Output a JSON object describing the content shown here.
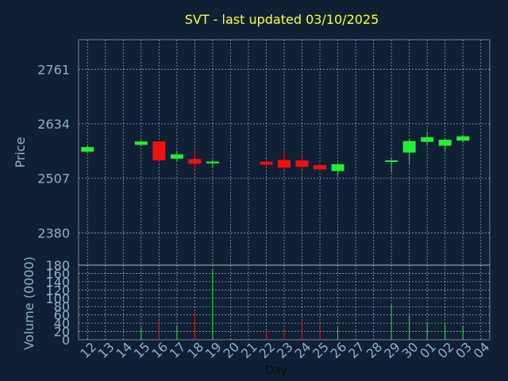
{
  "chart_data": {
    "type": "candlestick",
    "title": "SVT - last updated 03/10/2025",
    "xlabel": "Day",
    "price_axis": {
      "label": "Price",
      "ticks": [
        2380,
        2507,
        2634,
        2761
      ],
      "ylim": [
        2305,
        2830
      ]
    },
    "volume_axis": {
      "label": "Volume (0000)",
      "ticks": [
        0,
        20,
        40,
        60,
        80,
        100,
        120,
        140,
        160,
        180
      ],
      "ylim": [
        0,
        180
      ]
    },
    "x_ticks": [
      "12",
      "13",
      "14",
      "15",
      "16",
      "17",
      "18",
      "19",
      "20",
      "21",
      "22",
      "23",
      "24",
      "25",
      "26",
      "27",
      "28",
      "29",
      "30",
      "01",
      "02",
      "03",
      "04"
    ],
    "colors": {
      "up": "#22ee33",
      "down": "#ee1111",
      "background": "#0f2035",
      "title": "#ffff33",
      "tick": "#8fb0cc"
    },
    "candles": [
      {
        "day": "12",
        "open": 2569,
        "close": 2580,
        "high": 2583,
        "low": 2566,
        "volume": 5
      },
      {
        "day": "15",
        "open": 2585,
        "close": 2593,
        "high": 2596,
        "low": 2582,
        "volume": 30
      },
      {
        "day": "16",
        "open": 2593,
        "close": 2549,
        "high": 2595,
        "low": 2544,
        "volume": 45
      },
      {
        "day": "17",
        "open": 2553,
        "close": 2563,
        "high": 2572,
        "low": 2546,
        "volume": 35
      },
      {
        "day": "18",
        "open": 2552,
        "close": 2541,
        "high": 2573,
        "low": 2524,
        "volume": 65
      },
      {
        "day": "19",
        "open": 2542,
        "close": 2546,
        "high": 2551,
        "low": 2533,
        "volume": 170
      },
      {
        "day": "22",
        "open": 2546,
        "close": 2539,
        "high": 2552,
        "low": 2534,
        "volume": 20
      },
      {
        "day": "23",
        "open": 2550,
        "close": 2532,
        "high": 2573,
        "low": 2526,
        "volume": 25
      },
      {
        "day": "24",
        "open": 2549,
        "close": 2534,
        "high": 2563,
        "low": 2527,
        "volume": 45
      },
      {
        "day": "25",
        "open": 2538,
        "close": 2528,
        "high": 2541,
        "low": 2523,
        "volume": 38
      },
      {
        "day": "26",
        "open": 2524,
        "close": 2540,
        "high": 2543,
        "low": 2513,
        "volume": 30
      },
      {
        "day": "29",
        "open": 2546,
        "close": 2549,
        "high": 2556,
        "low": 2521,
        "volume": 85
      },
      {
        "day": "30",
        "open": 2567,
        "close": 2594,
        "high": 2598,
        "low": 2540,
        "volume": 58
      },
      {
        "day": "01",
        "open": 2592,
        "close": 2603,
        "high": 2616,
        "low": 2583,
        "volume": 40
      },
      {
        "day": "02",
        "open": 2583,
        "close": 2597,
        "high": 2601,
        "low": 2571,
        "volume": 38
      },
      {
        "day": "03",
        "open": 2595,
        "close": 2605,
        "high": 2609,
        "low": 2592,
        "volume": 33
      }
    ]
  }
}
